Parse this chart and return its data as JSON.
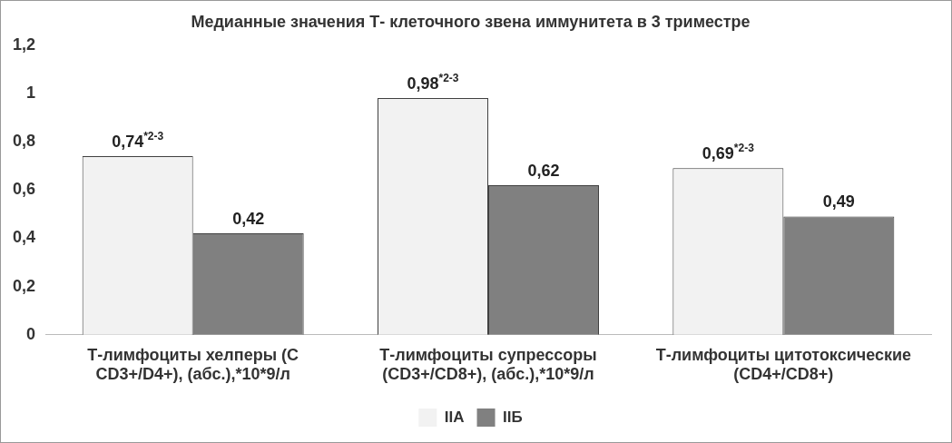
{
  "chart_data": {
    "type": "bar",
    "title": "Медианные значения Т- клеточного звена иммунитета в 3 триместре",
    "categories": [
      "Т-лимфоциты хелперы (С CD3+/D4+), (абс.),*10*9/л",
      "Т-лимфоциты супрессоры (CD3+/CD8+), (абс.),*10*9/л",
      "Т-лимфоциты цитотоксические (CD4+/CD8+)"
    ],
    "series": [
      {
        "name": "IIA",
        "color": "#f2f2f2",
        "values": [
          0.74,
          0.98,
          0.69
        ],
        "value_labels": [
          "0,74$^{*2-3}$",
          "0,98$^{*2-3}$",
          "0,69$^{*2-3}$"
        ]
      },
      {
        "name": "IIБ",
        "color": "#808080",
        "values": [
          0.42,
          0.62,
          0.49
        ],
        "value_labels": [
          "0,42",
          "0,62",
          "0,49"
        ]
      }
    ],
    "ylim": [
      0,
      1.2
    ],
    "yticks": [
      {
        "value": 0,
        "label": "0"
      },
      {
        "value": 0.2,
        "label": "0,2"
      },
      {
        "value": 0.4,
        "label": "0,4"
      },
      {
        "value": 0.6,
        "label": "0,6"
      },
      {
        "value": 0.8,
        "label": "0,8"
      },
      {
        "value": 1,
        "label": "1"
      },
      {
        "value": 1.2,
        "label": "1,2"
      }
    ],
    "grid": false,
    "legend": "bottom"
  }
}
